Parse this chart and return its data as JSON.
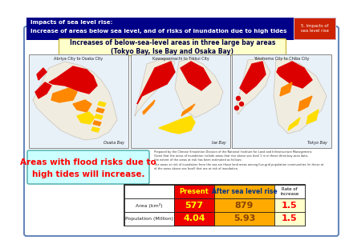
{
  "bg_color": "#ffffff",
  "outer_border_color": "#6688bb",
  "header_bg": "#000088",
  "header_text_line1": "Impacts of sea level rise:",
  "header_text_line2": "Increase of areas below sea level, and of risks of inundation due to high tides",
  "header_text_color": "#ffffff",
  "header_badge_bg": "#cc2200",
  "header_badge_text": "5. Impacts of\nsea level rise",
  "title_box_bg": "#ffffcc",
  "title_box_border": "#ccbb44",
  "title_text": "Increases of below-sea-level areas in three large bay areas\n(Tokyo Bay, Ise Bay and Osaka Bay)",
  "title_text_color": "#000044",
  "map_titles": [
    "Abriya City to Osaka City",
    "Kawagoemachi to Tikkui City",
    "Yokohoma City to Chiba City"
  ],
  "map_subtitles": [
    "Osaka Bay",
    "Ise Bay",
    "Tokyo Bay"
  ],
  "map_bg": "#e8f0f8",
  "flood_text_line1": "Areas with flood risks due to",
  "flood_text_line2": "high tides will increase.",
  "flood_text_color": "#ff0000",
  "flood_bg": "#ccffff",
  "flood_border": "#44aaaa",
  "table_rows": [
    {
      "label": "Area (km²)",
      "present": "577",
      "after": "879",
      "rate": "1.5"
    },
    {
      "label": "Population (Million)",
      "present": "4.04",
      "after": "5.93",
      "rate": "1.5"
    }
  ],
  "note_text": "Prepared by the Climate Simulation Division of the National Institute for Land and Infrastructure Management.\nGiven that the areas of inundation include areas that rise above sea level 1 m in these three-bay-area data,\nthe extent of the areas at risk has been estimated as follows:\nThe areas at risk of inundation from the sea are those land areas among five-grid population communities (in those at\nof the areas above sea level) that are at risk of inundation."
}
